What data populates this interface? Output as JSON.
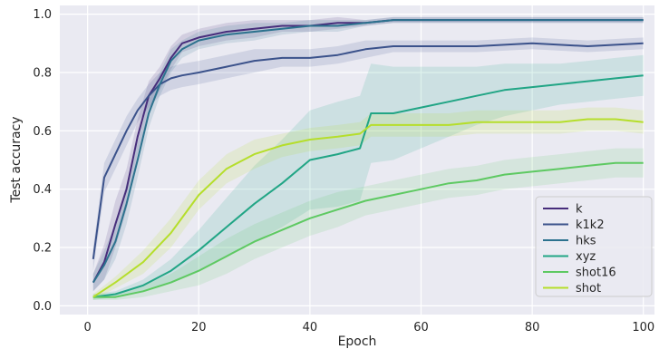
{
  "chart_data": {
    "type": "line",
    "xlabel": "Epoch",
    "ylabel": "Test accuracy",
    "xlim": [
      -5,
      102
    ],
    "ylim": [
      -0.03,
      1.03
    ],
    "x_ticks": [
      0,
      20,
      40,
      60,
      80,
      100
    ],
    "y_ticks": [
      0.0,
      0.2,
      0.4,
      0.6,
      0.8,
      1.0
    ],
    "y_tick_labels": [
      "0.0",
      "0.2",
      "0.4",
      "0.6",
      "0.8",
      "1.0"
    ],
    "grid": true,
    "background": "#eaeaf2",
    "legend_position": "lower-right",
    "series": [
      {
        "name": "k",
        "color": "#472d7b",
        "x": [
          1,
          3,
          5,
          7,
          9,
          11,
          13,
          15,
          17,
          20,
          25,
          30,
          35,
          40,
          45,
          50,
          55,
          60,
          70,
          80,
          90,
          100
        ],
        "values": [
          0.08,
          0.15,
          0.28,
          0.4,
          0.58,
          0.72,
          0.78,
          0.85,
          0.9,
          0.92,
          0.94,
          0.95,
          0.96,
          0.96,
          0.97,
          0.97,
          0.98,
          0.98,
          0.98,
          0.98,
          0.98,
          0.98
        ],
        "band": [
          0.03,
          0.06,
          0.08,
          0.07,
          0.06,
          0.05,
          0.04,
          0.04,
          0.03,
          0.03,
          0.03,
          0.03,
          0.02,
          0.02,
          0.02,
          0.01,
          0.01,
          0.01,
          0.01,
          0.01,
          0.01,
          0.01
        ]
      },
      {
        "name": "k1k2",
        "color": "#3b528b",
        "x": [
          1,
          3,
          5,
          7,
          9,
          11,
          13,
          15,
          17,
          20,
          25,
          30,
          35,
          40,
          45,
          50,
          55,
          60,
          70,
          80,
          90,
          100
        ],
        "values": [
          0.16,
          0.44,
          0.52,
          0.6,
          0.67,
          0.72,
          0.76,
          0.78,
          0.79,
          0.8,
          0.82,
          0.84,
          0.85,
          0.85,
          0.86,
          0.88,
          0.89,
          0.89,
          0.89,
          0.9,
          0.89,
          0.9
        ],
        "band": [
          0.04,
          0.05,
          0.05,
          0.05,
          0.04,
          0.04,
          0.04,
          0.04,
          0.04,
          0.04,
          0.04,
          0.04,
          0.03,
          0.03,
          0.03,
          0.03,
          0.02,
          0.02,
          0.02,
          0.02,
          0.02,
          0.02
        ]
      },
      {
        "name": "hks",
        "color": "#2c728e",
        "x": [
          1,
          3,
          5,
          7,
          9,
          11,
          13,
          15,
          17,
          20,
          25,
          30,
          35,
          40,
          45,
          50,
          55,
          60,
          70,
          80,
          90,
          100
        ],
        "values": [
          0.08,
          0.14,
          0.22,
          0.35,
          0.5,
          0.66,
          0.76,
          0.84,
          0.88,
          0.91,
          0.93,
          0.94,
          0.95,
          0.96,
          0.96,
          0.97,
          0.98,
          0.98,
          0.98,
          0.98,
          0.98,
          0.98
        ],
        "band": [
          0.03,
          0.05,
          0.06,
          0.07,
          0.06,
          0.05,
          0.04,
          0.04,
          0.03,
          0.03,
          0.03,
          0.03,
          0.02,
          0.02,
          0.02,
          0.01,
          0.01,
          0.01,
          0.01,
          0.01,
          0.01,
          0.01
        ]
      },
      {
        "name": "xyz",
        "color": "#21a585",
        "x": [
          1,
          5,
          10,
          15,
          20,
          25,
          30,
          35,
          40,
          45,
          49,
          51,
          55,
          60,
          65,
          70,
          75,
          80,
          85,
          90,
          95,
          100
        ],
        "values": [
          0.03,
          0.04,
          0.07,
          0.12,
          0.19,
          0.27,
          0.35,
          0.42,
          0.5,
          0.52,
          0.54,
          0.66,
          0.66,
          0.68,
          0.7,
          0.72,
          0.74,
          0.75,
          0.76,
          0.77,
          0.78,
          0.79
        ],
        "band": [
          0.01,
          0.01,
          0.02,
          0.04,
          0.07,
          0.1,
          0.13,
          0.15,
          0.17,
          0.18,
          0.18,
          0.17,
          0.16,
          0.14,
          0.12,
          0.1,
          0.09,
          0.08,
          0.07,
          0.07,
          0.07,
          0.07
        ]
      },
      {
        "name": "shot16",
        "color": "#5ec962",
        "x": [
          1,
          5,
          10,
          15,
          20,
          25,
          30,
          35,
          40,
          45,
          50,
          55,
          60,
          65,
          70,
          75,
          80,
          85,
          90,
          95,
          100
        ],
        "values": [
          0.03,
          0.03,
          0.05,
          0.08,
          0.12,
          0.17,
          0.22,
          0.26,
          0.3,
          0.33,
          0.36,
          0.38,
          0.4,
          0.42,
          0.43,
          0.45,
          0.46,
          0.47,
          0.48,
          0.49,
          0.49
        ],
        "band": [
          0.01,
          0.01,
          0.02,
          0.03,
          0.05,
          0.06,
          0.06,
          0.06,
          0.06,
          0.06,
          0.05,
          0.05,
          0.05,
          0.05,
          0.05,
          0.05,
          0.05,
          0.05,
          0.05,
          0.05,
          0.05
        ]
      },
      {
        "name": "shot",
        "color": "#b5de2b",
        "x": [
          1,
          5,
          10,
          15,
          20,
          25,
          30,
          35,
          40,
          45,
          49,
          51,
          55,
          60,
          65,
          70,
          75,
          80,
          85,
          90,
          95,
          100
        ],
        "values": [
          0.03,
          0.08,
          0.15,
          0.25,
          0.38,
          0.47,
          0.52,
          0.55,
          0.57,
          0.58,
          0.59,
          0.62,
          0.62,
          0.62,
          0.62,
          0.63,
          0.63,
          0.63,
          0.63,
          0.64,
          0.64,
          0.63
        ],
        "band": [
          0.01,
          0.02,
          0.04,
          0.05,
          0.05,
          0.05,
          0.05,
          0.04,
          0.04,
          0.04,
          0.04,
          0.04,
          0.04,
          0.04,
          0.04,
          0.04,
          0.04,
          0.04,
          0.04,
          0.04,
          0.04,
          0.04
        ]
      }
    ]
  }
}
